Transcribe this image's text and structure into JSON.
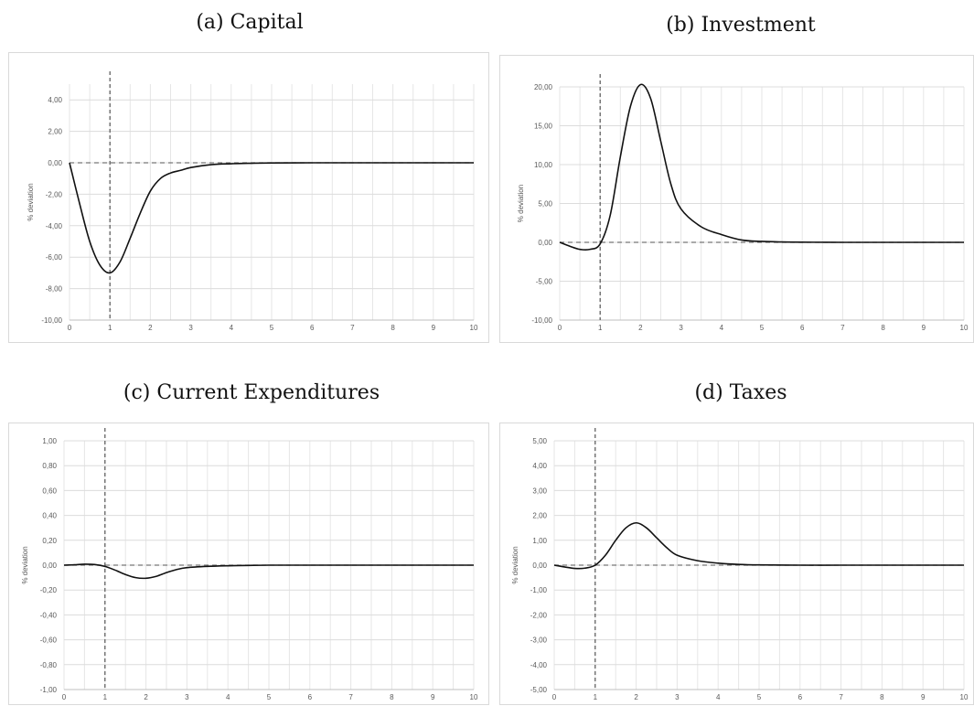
{
  "chart_data": [
    {
      "type": "line",
      "title": "(a) Capital",
      "ylabel": "% deviation",
      "xlim": [
        0,
        10
      ],
      "ylim": [
        -10,
        5
      ],
      "xticks": [
        "0",
        "1",
        "2",
        "3",
        "4",
        "5",
        "6",
        "7",
        "8",
        "9",
        "10"
      ],
      "yticks": [
        "4,00",
        "2,00",
        "0,00",
        "-2,00",
        "-4,00",
        "-6,00",
        "-8,00",
        "-10,00"
      ],
      "ytick_values": [
        4,
        2,
        0,
        -2,
        -4,
        -6,
        -8,
        -10
      ],
      "grid": true,
      "shock_x": 1,
      "series": [
        {
          "x": [
            0,
            0.25,
            0.5,
            0.75,
            1.0,
            1.25,
            1.5,
            1.75,
            2.0,
            2.25,
            2.5,
            2.75,
            3.0,
            3.5,
            4.0,
            4.5,
            5.0,
            6,
            7,
            8,
            9,
            10
          ],
          "y": [
            0,
            -2.6,
            -5.0,
            -6.5,
            -7.0,
            -6.3,
            -4.8,
            -3.2,
            -1.8,
            -1.0,
            -0.65,
            -0.48,
            -0.3,
            -0.12,
            -0.06,
            -0.03,
            -0.01,
            0,
            0,
            0,
            0,
            0
          ]
        }
      ]
    },
    {
      "type": "line",
      "title": "(b) Investment",
      "ylabel": "% deviation",
      "xlim": [
        0,
        10
      ],
      "ylim": [
        -10,
        20
      ],
      "xticks": [
        "0",
        "1",
        "2",
        "3",
        "4",
        "5",
        "6",
        "7",
        "8",
        "9",
        "10"
      ],
      "yticks": [
        "20,00",
        "15,00",
        "10,00",
        "5,00",
        "0,00",
        "-5,00",
        "-10,00"
      ],
      "ytick_values": [
        20,
        15,
        10,
        5,
        0,
        -5,
        -10
      ],
      "grid": true,
      "shock_x": 1,
      "series": [
        {
          "x": [
            0,
            0.25,
            0.5,
            0.75,
            1.0,
            1.25,
            1.5,
            1.75,
            2.0,
            2.25,
            2.5,
            2.75,
            3.0,
            3.5,
            4.0,
            4.5,
            5.0,
            5.5,
            6,
            7,
            8,
            9,
            10
          ],
          "y": [
            0,
            -0.5,
            -0.9,
            -0.9,
            -0.2,
            3.5,
            11.0,
            17.5,
            20.3,
            18.5,
            13.0,
            7.5,
            4.3,
            2.0,
            1.0,
            0.3,
            0.12,
            0.05,
            0.02,
            0,
            0,
            0,
            0
          ]
        }
      ]
    },
    {
      "type": "line",
      "title": "(c) Current Expenditures",
      "ylabel": "% deviation",
      "xlim": [
        0,
        10
      ],
      "ylim": [
        -1,
        1
      ],
      "xticks": [
        "0",
        "1",
        "2",
        "3",
        "4",
        "5",
        "6",
        "7",
        "8",
        "9",
        "10"
      ],
      "yticks": [
        "1,00",
        "0,80",
        "0,60",
        "0,40",
        "0,20",
        "0,00",
        "-0,20",
        "-0,40",
        "-0,60",
        "-0,80",
        "-1,00"
      ],
      "ytick_values": [
        1,
        0.8,
        0.6,
        0.4,
        0.2,
        0,
        -0.2,
        -0.4,
        -0.6,
        -0.8,
        -1
      ],
      "grid": true,
      "shock_x": 1,
      "series": [
        {
          "x": [
            0,
            0.25,
            0.5,
            0.75,
            1.0,
            1.25,
            1.5,
            1.75,
            2.0,
            2.25,
            2.5,
            2.75,
            3.0,
            3.5,
            4.0,
            4.5,
            5.0,
            6,
            7,
            8,
            9,
            10
          ],
          "y": [
            0,
            0.003,
            0.008,
            0.005,
            -0.01,
            -0.04,
            -0.075,
            -0.1,
            -0.105,
            -0.09,
            -0.06,
            -0.035,
            -0.02,
            -0.01,
            -0.005,
            -0.002,
            0,
            0,
            0,
            0,
            0,
            0
          ]
        }
      ]
    },
    {
      "type": "line",
      "title": "(d) Taxes",
      "ylabel": "% deviation",
      "xlim": [
        0,
        10
      ],
      "ylim": [
        -5,
        5
      ],
      "xticks": [
        "0",
        "1",
        "2",
        "3",
        "4",
        "5",
        "6",
        "7",
        "8",
        "9",
        "10"
      ],
      "yticks": [
        "5,00",
        "4,00",
        "3,00",
        "2,00",
        "1,00",
        "0,00",
        "-1,00",
        "-2,00",
        "-3,00",
        "-4,00",
        "-5,00"
      ],
      "ytick_values": [
        5,
        4,
        3,
        2,
        1,
        0,
        -1,
        -2,
        -3,
        -4,
        -5
      ],
      "grid": true,
      "shock_x": 1,
      "series": [
        {
          "x": [
            0,
            0.25,
            0.5,
            0.75,
            1.0,
            1.25,
            1.5,
            1.75,
            2.0,
            2.25,
            2.5,
            2.75,
            3.0,
            3.5,
            4.0,
            4.5,
            5.0,
            6,
            7,
            8,
            9,
            10
          ],
          "y": [
            0,
            -0.07,
            -0.13,
            -0.12,
            0.0,
            0.4,
            1.0,
            1.5,
            1.7,
            1.5,
            1.1,
            0.7,
            0.4,
            0.18,
            0.08,
            0.03,
            0.01,
            0,
            0,
            0,
            0,
            0
          ]
        }
      ]
    }
  ]
}
